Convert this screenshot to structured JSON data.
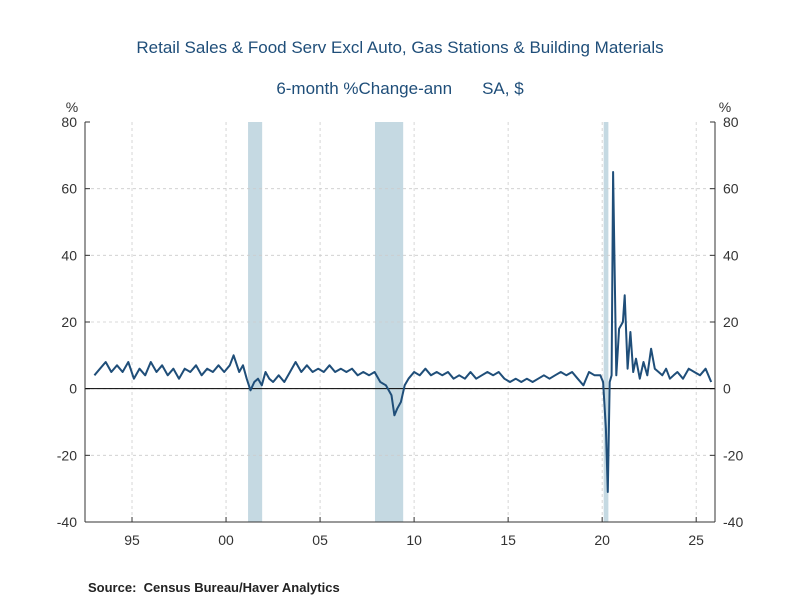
{
  "chart_data": {
    "type": "line",
    "title": "Retail Sales & Food Serv Excl Auto, Gas Stations & Building Materials",
    "subtitle_measure": "6-month %Change-ann",
    "subtitle_units": "SA, $",
    "ylabel_left": "%",
    "ylabel_right": "%",
    "source_label": "Source:",
    "source_text": "Census Bureau/Haver Analytics",
    "xlim": [
      1992.5,
      2026.0
    ],
    "ylim": [
      -40,
      80
    ],
    "x_ticks": [
      {
        "value": 1995,
        "label": "95"
      },
      {
        "value": 2000,
        "label": "00"
      },
      {
        "value": 2005,
        "label": "05"
      },
      {
        "value": 2010,
        "label": "10"
      },
      {
        "value": 2015,
        "label": "15"
      },
      {
        "value": 2020,
        "label": "20"
      },
      {
        "value": 2025,
        "label": "25"
      }
    ],
    "y_ticks": [
      80,
      60,
      40,
      20,
      0,
      -20,
      -40
    ],
    "recessions": [
      [
        2001.17,
        2001.92
      ],
      [
        2007.92,
        2009.42
      ],
      [
        2020.08,
        2020.33
      ]
    ],
    "colors": {
      "line": "#1f4e79",
      "recession": "#c5d9e2",
      "grid": "#cccccc",
      "zero": "#000000"
    },
    "series": [
      {
        "name": "6-month %Change-ann",
        "points": [
          [
            1993.0,
            4
          ],
          [
            1993.3,
            6
          ],
          [
            1993.6,
            8
          ],
          [
            1993.9,
            5
          ],
          [
            1994.2,
            7
          ],
          [
            1994.5,
            5
          ],
          [
            1994.8,
            8
          ],
          [
            1995.1,
            3
          ],
          [
            1995.4,
            6
          ],
          [
            1995.7,
            4
          ],
          [
            1996.0,
            8
          ],
          [
            1996.3,
            5
          ],
          [
            1996.6,
            7
          ],
          [
            1996.9,
            4
          ],
          [
            1997.2,
            6
          ],
          [
            1997.5,
            3
          ],
          [
            1997.8,
            6
          ],
          [
            1998.1,
            5
          ],
          [
            1998.4,
            7
          ],
          [
            1998.7,
            4
          ],
          [
            1999.0,
            6
          ],
          [
            1999.3,
            5
          ],
          [
            1999.6,
            7
          ],
          [
            1999.9,
            5
          ],
          [
            2000.2,
            7
          ],
          [
            2000.4,
            10
          ],
          [
            2000.7,
            5
          ],
          [
            2000.9,
            7
          ],
          [
            2001.1,
            3
          ],
          [
            2001.3,
            -0.5
          ],
          [
            2001.5,
            2
          ],
          [
            2001.7,
            3
          ],
          [
            2001.9,
            1
          ],
          [
            2002.1,
            5
          ],
          [
            2002.3,
            3
          ],
          [
            2002.5,
            2
          ],
          [
            2002.8,
            4
          ],
          [
            2003.1,
            2
          ],
          [
            2003.4,
            5
          ],
          [
            2003.7,
            8
          ],
          [
            2004.0,
            5
          ],
          [
            2004.3,
            7
          ],
          [
            2004.6,
            5
          ],
          [
            2004.9,
            6
          ],
          [
            2005.2,
            5
          ],
          [
            2005.5,
            7
          ],
          [
            2005.8,
            5
          ],
          [
            2006.1,
            6
          ],
          [
            2006.4,
            5
          ],
          [
            2006.7,
            6
          ],
          [
            2007.0,
            4
          ],
          [
            2007.3,
            5
          ],
          [
            2007.6,
            4
          ],
          [
            2007.9,
            5
          ],
          [
            2008.2,
            2
          ],
          [
            2008.5,
            1
          ],
          [
            2008.8,
            -2
          ],
          [
            2008.95,
            -8
          ],
          [
            2009.1,
            -6
          ],
          [
            2009.3,
            -4
          ],
          [
            2009.5,
            1
          ],
          [
            2009.7,
            3
          ],
          [
            2010.0,
            5
          ],
          [
            2010.3,
            4
          ],
          [
            2010.6,
            6
          ],
          [
            2010.9,
            4
          ],
          [
            2011.2,
            5
          ],
          [
            2011.5,
            4
          ],
          [
            2011.8,
            5
          ],
          [
            2012.1,
            3
          ],
          [
            2012.4,
            4
          ],
          [
            2012.7,
            3
          ],
          [
            2013.0,
            5
          ],
          [
            2013.3,
            3
          ],
          [
            2013.6,
            4
          ],
          [
            2013.9,
            5
          ],
          [
            2014.2,
            4
          ],
          [
            2014.5,
            5
          ],
          [
            2014.8,
            3
          ],
          [
            2015.1,
            2
          ],
          [
            2015.4,
            3
          ],
          [
            2015.7,
            2
          ],
          [
            2016.0,
            3
          ],
          [
            2016.3,
            2
          ],
          [
            2016.6,
            3
          ],
          [
            2016.9,
            4
          ],
          [
            2017.2,
            3
          ],
          [
            2017.5,
            4
          ],
          [
            2017.8,
            5
          ],
          [
            2018.1,
            4
          ],
          [
            2018.4,
            5
          ],
          [
            2018.7,
            3
          ],
          [
            2019.0,
            1
          ],
          [
            2019.3,
            5
          ],
          [
            2019.6,
            4
          ],
          [
            2019.9,
            4
          ],
          [
            2020.05,
            2
          ],
          [
            2020.2,
            -12
          ],
          [
            2020.3,
            -31
          ],
          [
            2020.4,
            2
          ],
          [
            2020.5,
            4
          ],
          [
            2020.58,
            65
          ],
          [
            2020.75,
            4
          ],
          [
            2020.9,
            18
          ],
          [
            2021.1,
            20
          ],
          [
            2021.2,
            28
          ],
          [
            2021.35,
            6
          ],
          [
            2021.5,
            17
          ],
          [
            2021.65,
            5
          ],
          [
            2021.8,
            9
          ],
          [
            2022.0,
            3
          ],
          [
            2022.2,
            8
          ],
          [
            2022.4,
            4
          ],
          [
            2022.6,
            12
          ],
          [
            2022.8,
            6
          ],
          [
            2023.0,
            5
          ],
          [
            2023.2,
            4
          ],
          [
            2023.4,
            6
          ],
          [
            2023.6,
            3
          ],
          [
            2023.8,
            4
          ],
          [
            2024.0,
            5
          ],
          [
            2024.3,
            3
          ],
          [
            2024.6,
            6
          ],
          [
            2024.9,
            5
          ],
          [
            2025.2,
            4
          ],
          [
            2025.5,
            6
          ],
          [
            2025.8,
            2
          ]
        ]
      }
    ]
  }
}
